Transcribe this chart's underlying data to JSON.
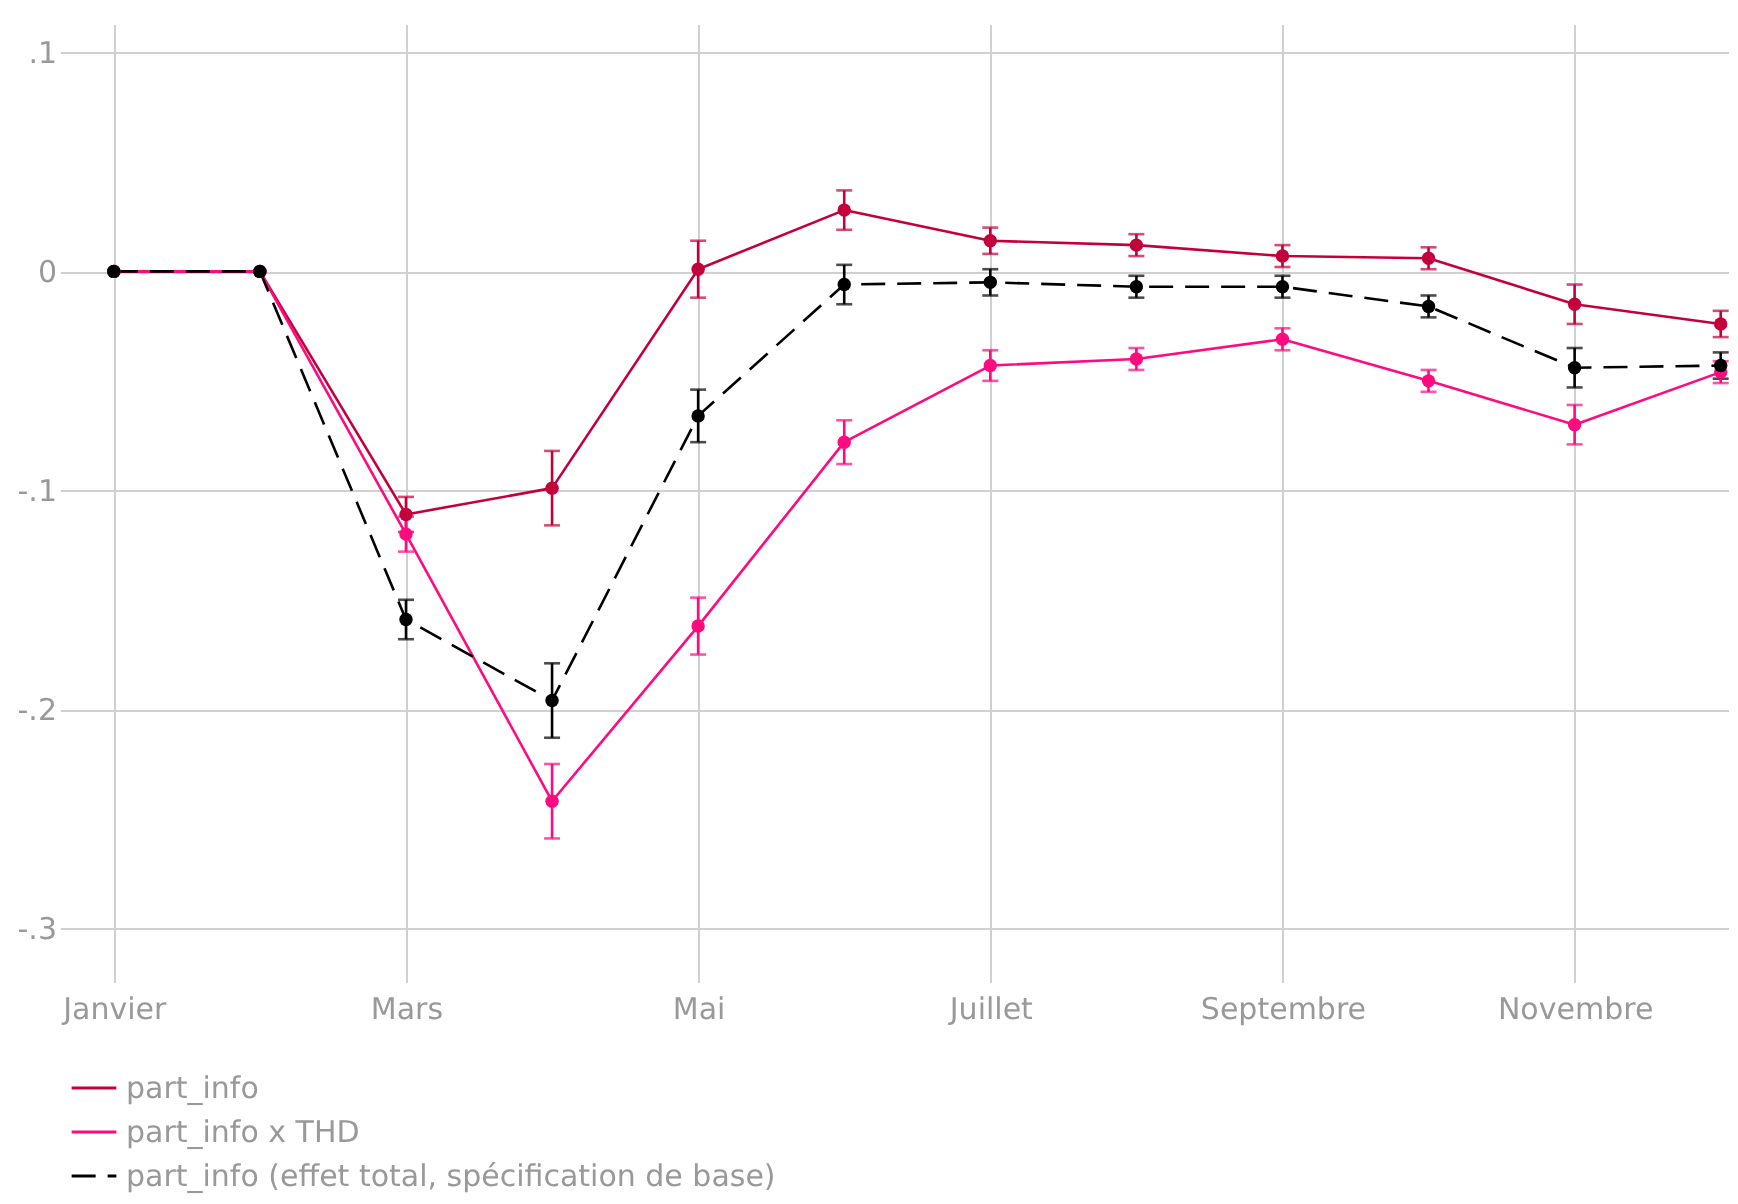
{
  "chart_data": {
    "type": "line",
    "categories": [
      "Janvier",
      null,
      "Mars",
      null,
      "Mai",
      null,
      "Juillet",
      null,
      "Septembre",
      null,
      "Novembre",
      null
    ],
    "ylim": [
      -0.32,
      0.113
    ],
    "yticks": [
      {
        "value": 0.1,
        "label": ".1"
      },
      0,
      {
        "value": -0.1,
        "label": "-.1"
      },
      {
        "value": -0.2,
        "label": "-.2"
      },
      {
        "value": -0.3,
        "label": "-.3"
      }
    ],
    "grid": true,
    "legend": "bottom",
    "marker": "circle",
    "series": [
      {
        "name": "part_info",
        "color": "#c4003c",
        "line_style": "solid",
        "values": [
          0,
          0,
          -0.111,
          -0.099,
          0.001,
          0.028,
          0.014,
          0.012,
          0.007,
          0.006,
          -0.015,
          -0.024
        ],
        "errors": [
          null,
          null,
          0.008,
          0.017,
          0.013,
          0.009,
          0.006,
          0.005,
          0.005,
          0.005,
          0.009,
          0.006
        ]
      },
      {
        "name": "part_info x THD",
        "color": "#ff0a7f",
        "line_style": "solid",
        "values": [
          0,
          0,
          -0.12,
          -0.242,
          -0.162,
          -0.078,
          -0.043,
          -0.04,
          -0.031,
          -0.05,
          -0.07,
          -0.046
        ],
        "errors": [
          null,
          null,
          0.008,
          0.017,
          0.013,
          0.01,
          0.007,
          0.005,
          0.005,
          0.005,
          0.009,
          0.005
        ]
      },
      {
        "name": "part_info (effet total, spécification de base)",
        "color": "#000000",
        "line_style": "dashed",
        "values": [
          0,
          0,
          -0.159,
          -0.196,
          -0.066,
          -0.006,
          -0.005,
          -0.007,
          -0.007,
          -0.016,
          -0.044,
          -0.043
        ],
        "errors": [
          null,
          null,
          0.009,
          0.017,
          0.012,
          0.009,
          0.006,
          0.005,
          0.005,
          0.005,
          0.009,
          0.006
        ]
      }
    ]
  }
}
